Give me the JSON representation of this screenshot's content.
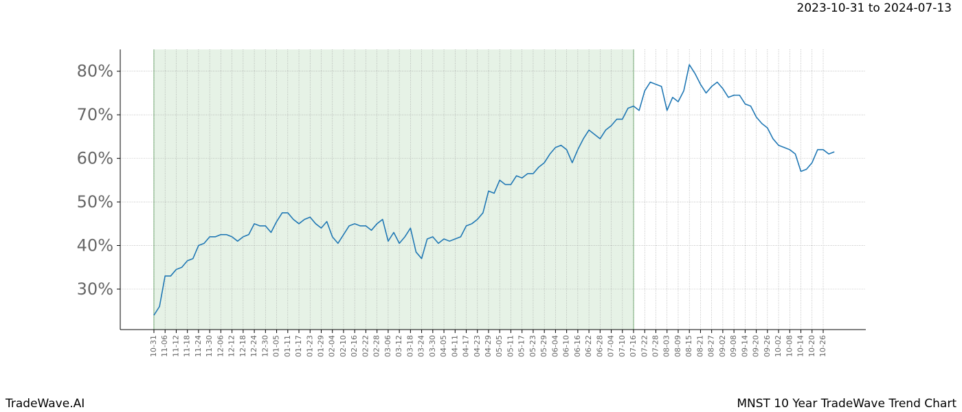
{
  "chart_data": {
    "type": "line",
    "title": "MNST 10 Year TradeWave Trend Chart",
    "subtitle": "2023-10-31 to 2024-07-13",
    "brand": "TradeWave.AI",
    "categories": [
      "10-31",
      null,
      "11-06",
      null,
      "11-12",
      null,
      "11-18",
      null,
      "11-24",
      null,
      "11-30",
      null,
      "12-06",
      null,
      "12-12",
      null,
      "12-18",
      null,
      "12-24",
      null,
      "12-30",
      null,
      "01-05",
      null,
      "01-11",
      null,
      "01-17",
      null,
      "01-23",
      null,
      "01-29",
      null,
      "02-04",
      null,
      "02-10",
      null,
      "02-16",
      null,
      "02-22",
      null,
      "02-28",
      null,
      "03-06",
      null,
      "03-12",
      null,
      "03-18",
      null,
      "03-24",
      null,
      "03-30",
      null,
      "04-05",
      null,
      "04-11",
      null,
      "04-17",
      null,
      "04-23",
      null,
      "04-29",
      null,
      "05-05",
      null,
      "05-11",
      null,
      "05-17",
      null,
      "05-23",
      null,
      "05-29",
      null,
      "06-04",
      null,
      "06-10",
      null,
      "06-16",
      null,
      "06-22",
      null,
      "06-28",
      null,
      "07-04",
      null,
      "07-10",
      null,
      "07-16",
      null,
      "07-22",
      null,
      "07-28",
      null,
      "08-03",
      null,
      "08-09",
      null,
      "08-15",
      null,
      "08-21",
      null,
      "08-27",
      null,
      "09-02",
      null,
      "09-08",
      null,
      "09-14",
      null,
      "09-20",
      null,
      "09-26",
      null,
      "10-02",
      null,
      "10-08",
      null,
      "10-14",
      null,
      "10-20",
      null,
      "10-26",
      null,
      null
    ],
    "series": [
      {
        "color": "#1f77b4",
        "values": [
          24,
          26,
          33,
          33,
          34.5,
          35,
          36.5,
          37,
          40,
          40.5,
          42,
          42,
          42.5,
          42.5,
          42,
          41,
          42,
          42.5,
          45,
          44.5,
          44.5,
          43,
          45.5,
          47.5,
          47.5,
          46,
          45,
          46,
          46.5,
          45,
          44,
          45.5,
          42,
          40.5,
          42.5,
          44.5,
          45,
          44.5,
          44.5,
          43.5,
          45,
          46,
          41,
          43,
          40.5,
          42,
          44,
          38.5,
          37,
          41.5,
          42,
          40.5,
          41.5,
          41,
          41.5,
          42,
          44.5,
          45,
          46,
          47.5,
          52.5,
          52,
          55,
          54,
          54,
          56,
          55.5,
          56.5,
          56.5,
          58,
          59,
          61,
          62.5,
          63,
          62,
          59,
          62,
          64.5,
          66.5,
          65.5,
          64.5,
          66.5,
          67.5,
          69,
          69,
          71.5,
          72,
          71,
          75.5,
          77.5,
          77,
          76.5,
          71,
          74,
          73,
          75.5,
          81.5,
          79.5,
          77,
          75,
          76.5,
          77.5,
          76,
          74,
          74.5,
          74.5,
          72.5,
          72,
          69.5,
          68,
          67,
          64.5,
          63,
          62.5,
          62,
          61,
          57,
          57.5,
          59,
          62,
          62,
          61,
          61.5
        ]
      }
    ],
    "highlight": {
      "start": "10-31",
      "end": "07-16",
      "color": "#e6f2e6"
    },
    "ylim": [
      20.7,
      85.0
    ],
    "yticks": [
      {
        "value": 30,
        "label": "30%"
      },
      {
        "value": 40,
        "label": "40%"
      },
      {
        "value": 50,
        "label": "50%"
      },
      {
        "value": 60,
        "label": "60%"
      },
      {
        "value": 70,
        "label": "70%"
      },
      {
        "value": 80,
        "label": "80%"
      }
    ],
    "grid": true
  }
}
